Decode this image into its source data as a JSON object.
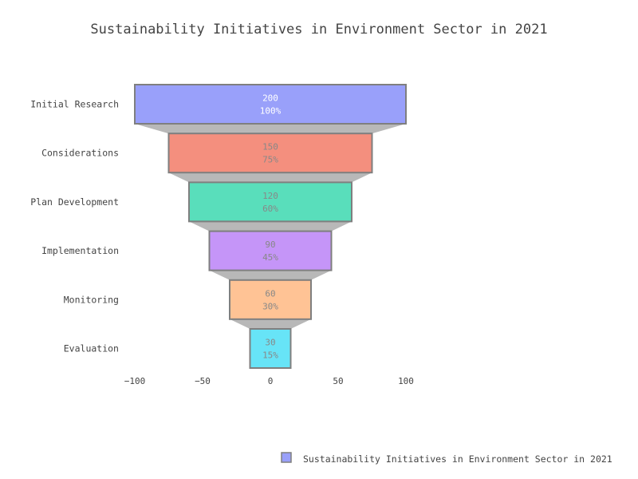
{
  "chart_data": {
    "type": "funnel",
    "title": "Sustainability Initiatives in Environment Sector in 2021",
    "categories": [
      "Initial Research",
      "Considerations",
      "Plan Development",
      "Implementation",
      "Monitoring",
      "Evaluation"
    ],
    "values": [
      200,
      150,
      120,
      90,
      60,
      30
    ],
    "percent_labels": [
      "100%",
      "75%",
      "60%",
      "45%",
      "30%",
      "15%"
    ],
    "colors": [
      "#99A0FA",
      "#F48F7E",
      "#59DEBB",
      "#C595F8",
      "#FFC395",
      "#67E4F7"
    ],
    "label_colors": [
      "#ffffff",
      "#888888",
      "#888888",
      "#888888",
      "#888888",
      "#888888"
    ],
    "connector_color": "#B8B8B8",
    "border_color": "#7F7F7F",
    "x_ticks": [
      -100,
      -50,
      0,
      50,
      100
    ],
    "xlim": [
      -100,
      100
    ],
    "legend": {
      "label": "Sustainability Initiatives in Environment Sector in 2021",
      "position": "bottom-right"
    },
    "grid": false
  }
}
